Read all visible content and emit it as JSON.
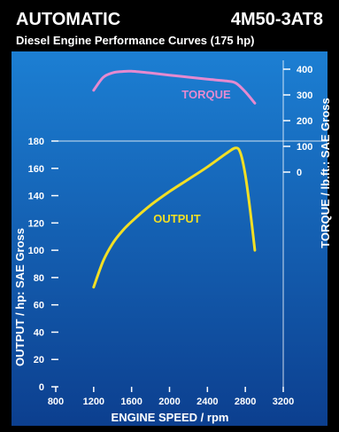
{
  "header": {
    "left_title": "AUTOMATIC",
    "right_title": "4M50-3AT8",
    "subtitle": "Diesel Engine Performance Curves (175 hp)"
  },
  "colors": {
    "background": "#000000",
    "panel_top": "#1c7fd3",
    "panel_bottom": "#0c3f8f",
    "torque": "#e58ad0",
    "output": "#f2df24",
    "text": "#ffffff"
  },
  "chart_data": {
    "type": "line",
    "title": "AUTOMATIC 4M50-3AT8",
    "subtitle": "Diesel Engine Performance Curves (175 hp)",
    "xlabel": "ENGINE SPEED / rpm",
    "ylabel_left": "OUTPUT / hp: SAE Gross",
    "ylabel_right": "TORQUE / lb.ft.: SAE Gross",
    "xlim": [
      800,
      3200
    ],
    "x_ticks": [
      800,
      1200,
      1600,
      2000,
      2400,
      2800,
      3200
    ],
    "y_left_lim": [
      0,
      180
    ],
    "y_left_ticks": [
      0,
      20,
      40,
      60,
      80,
      100,
      120,
      140,
      160,
      180
    ],
    "y_right_lim": [
      -100,
      400
    ],
    "y_right_ticks": [
      0,
      100,
      200,
      300,
      400
    ],
    "grid": "one horizontal and one vertical line only",
    "series": [
      {
        "name": "TORQUE",
        "axis": "right",
        "x": [
          1200,
          1300,
          1400,
          1500,
          1600,
          1800,
          2000,
          2200,
          2400,
          2600,
          2700,
          2800,
          2900
        ],
        "values": [
          318,
          368,
          386,
          391,
          392,
          385,
          377,
          369,
          361,
          354,
          346,
          312,
          268
        ]
      },
      {
        "name": "OUTPUT",
        "axis": "left",
        "x": [
          1200,
          1300,
          1400,
          1500,
          1600,
          1800,
          2000,
          2200,
          2400,
          2600,
          2700,
          2750,
          2800,
          2850,
          2900
        ],
        "values": [
          73,
          92,
          105,
          114,
          121,
          133,
          143,
          152,
          161,
          171,
          175,
          171,
          155,
          130,
          100
        ]
      }
    ]
  }
}
